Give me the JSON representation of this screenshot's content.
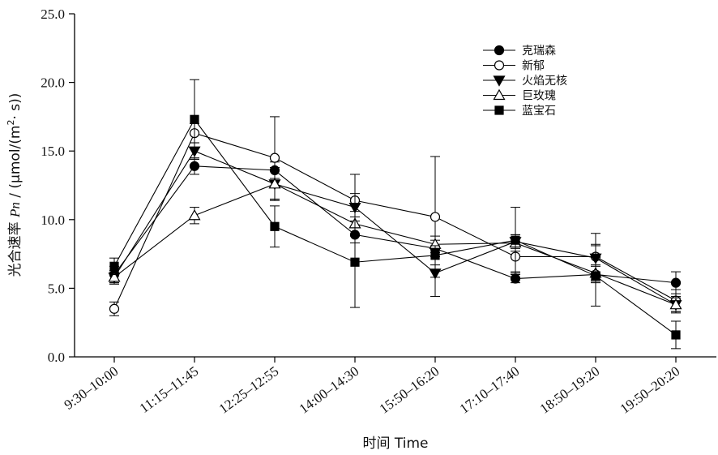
{
  "chart_data": {
    "type": "line",
    "xlabel": "时间  Time",
    "ylabel_parts": {
      "prefix": "光合速率 ",
      "italic": "Pn",
      "middle": " / (μmol/(m",
      "sup": "2",
      "suffix": "· s))"
    },
    "categories": [
      "9:30–10:00",
      "11:15–11:45",
      "12:25–12:55",
      "14:00–14:30",
      "15:50–16:20",
      "17:10–17:40",
      "18:50–19:20",
      "19:50–20:20"
    ],
    "ylim": [
      0,
      25
    ],
    "yticks": [
      0,
      5,
      10,
      15,
      20,
      25
    ],
    "ytick_labels": [
      "0.0",
      "5.0",
      "10.0",
      "15.0",
      "20.0",
      "25.0"
    ],
    "legend_position": "top-right",
    "grid": false,
    "series": [
      {
        "name": "克瑞森",
        "marker": "circle-filled",
        "values": [
          6.0,
          13.9,
          13.6,
          8.9,
          7.9,
          5.7,
          6.0,
          5.4
        ],
        "errors": [
          0.6,
          0.6,
          0.6,
          0.6,
          0.6,
          0.3,
          0.6,
          0.8
        ]
      },
      {
        "name": "新郁",
        "marker": "circle-open",
        "values": [
          3.5,
          16.3,
          14.5,
          11.4,
          10.2,
          7.3,
          7.3,
          4.1
        ],
        "errors": [
          0.5,
          0.7,
          3.0,
          1.9,
          4.4,
          1.1,
          1.7,
          0.8
        ]
      },
      {
        "name": "火焰无核",
        "marker": "triangle-down-filled",
        "values": [
          5.8,
          15.0,
          12.6,
          10.9,
          6.1,
          8.4,
          7.2,
          3.8
        ],
        "errors": [
          0.5,
          0.6,
          1.2,
          1.0,
          1.7,
          0.5,
          1.0,
          0.6
        ]
      },
      {
        "name": "巨玫瑰",
        "marker": "triangle-up-open",
        "values": [
          5.8,
          10.3,
          12.6,
          9.7,
          8.2,
          8.3,
          6.1,
          3.8
        ],
        "errors": [
          0.4,
          0.6,
          1.2,
          0.9,
          0.6,
          0.6,
          0.6,
          0.5
        ]
      },
      {
        "name": "蓝宝石",
        "marker": "square-filled",
        "values": [
          6.6,
          17.3,
          9.5,
          6.9,
          7.4,
          8.5,
          5.9,
          1.6
        ],
        "errors": [
          0.6,
          2.9,
          1.5,
          3.3,
          0.7,
          2.4,
          2.2,
          1.0
        ]
      }
    ]
  }
}
